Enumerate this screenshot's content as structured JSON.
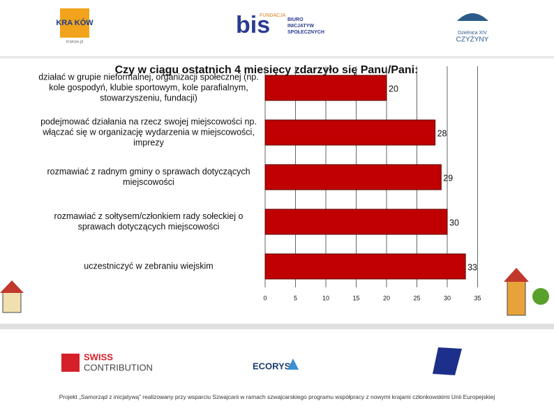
{
  "header": {
    "logo1": "KRA KÓW",
    "logo1_url": "krakow.pl",
    "logo2_top": "FUNDACJA",
    "logo2_mark": "bis",
    "logo2_text": "BIURO INICJATYW SPOŁECZNYCH",
    "logo3_top": "Dzielnica XIV",
    "logo3_name": "CZYŻYNY"
  },
  "chart_data": {
    "type": "barh",
    "title": "Czy w ciągu ostatnich 4 miesięcy zdarzyło się Panu/Pani:",
    "categories": [
      "działać w grupie nieformalnej, organizacji społecznej (np. kole gospodyń, klubie sportowym, kole parafialnym, stowarzyszeniu, fundacji)",
      "podejmować działania na rzecz swojej miejscowości np. włączać się w organizację wydarzenia w miejscowości, imprezy",
      "rozmawiać z radnym gminy o sprawach dotyczących miejscowości",
      "rozmawiać z sołtysem/członkiem rady sołeckiej o sprawach dotyczących miejscowości",
      "uczestniczyć w zebraniu wiejskim"
    ],
    "values": [
      20,
      28,
      29,
      30,
      33
    ],
    "color": "#c00000",
    "xlim": [
      0,
      35
    ],
    "xticks": [
      0,
      5,
      10,
      15,
      20,
      25,
      30,
      35
    ],
    "grid": true
  },
  "footer": {
    "logo_swiss_1": "SWISS",
    "logo_swiss_2": "CONTRIBUTION",
    "logo_ecorys": "ECORYS",
    "text": "Projekt „Samorząd z inicjatywą” realizowany przy wsparciu Szwajcarii w ramach szwajcarskiego programu współpracy z nowymi krajami członkowskimi Unii Europejskiej"
  }
}
